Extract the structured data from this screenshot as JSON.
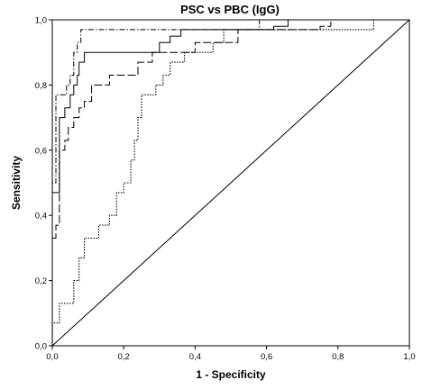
{
  "chart_data": {
    "type": "line",
    "title": "PSC vs PBC (IgG)",
    "xlabel": "1 - Specificity",
    "ylabel": "Sensitivity",
    "xlim": [
      0,
      1
    ],
    "ylim": [
      0,
      1
    ],
    "x_ticks": [
      "0,0",
      "0,2",
      "0,4",
      "0,6",
      "0,8",
      "1,0"
    ],
    "y_ticks": [
      "0,0",
      "0,2",
      "0,4",
      "0,6",
      "0,8",
      "1,0"
    ],
    "grid": false,
    "legend": "none",
    "series": [
      {
        "line_style": "solid",
        "points": [
          [
            0,
            0
          ],
          [
            0,
            0.47
          ],
          [
            0.02,
            0.47
          ],
          [
            0.02,
            0.7
          ],
          [
            0.035,
            0.7
          ],
          [
            0.035,
            0.73
          ],
          [
            0.05,
            0.73
          ],
          [
            0.05,
            0.77
          ],
          [
            0.06,
            0.77
          ],
          [
            0.06,
            0.8
          ],
          [
            0.07,
            0.8
          ],
          [
            0.07,
            0.83
          ],
          [
            0.075,
            0.83
          ],
          [
            0.075,
            0.87
          ],
          [
            0.09,
            0.87
          ],
          [
            0.09,
            0.9
          ],
          [
            0.3,
            0.9
          ],
          [
            0.3,
            0.93
          ],
          [
            0.33,
            0.93
          ],
          [
            0.33,
            0.95
          ],
          [
            0.36,
            0.95
          ],
          [
            0.36,
            0.97
          ],
          [
            0.62,
            0.97
          ],
          [
            0.62,
            0.98
          ],
          [
            0.66,
            0.98
          ],
          [
            0.66,
            1
          ],
          [
            1,
            1
          ]
        ]
      },
      {
        "line_style": "long-dash",
        "points": [
          [
            0,
            0
          ],
          [
            0,
            0.33
          ],
          [
            0.01,
            0.33
          ],
          [
            0.01,
            0.37
          ],
          [
            0.02,
            0.37
          ],
          [
            0.02,
            0.6
          ],
          [
            0.035,
            0.6
          ],
          [
            0.035,
            0.63
          ],
          [
            0.045,
            0.63
          ],
          [
            0.045,
            0.67
          ],
          [
            0.06,
            0.67
          ],
          [
            0.06,
            0.7
          ],
          [
            0.075,
            0.7
          ],
          [
            0.075,
            0.73
          ],
          [
            0.09,
            0.73
          ],
          [
            0.09,
            0.75
          ],
          [
            0.11,
            0.75
          ],
          [
            0.11,
            0.8
          ],
          [
            0.16,
            0.8
          ],
          [
            0.16,
            0.83
          ],
          [
            0.24,
            0.83
          ],
          [
            0.24,
            0.87
          ],
          [
            0.28,
            0.87
          ],
          [
            0.28,
            0.9
          ],
          [
            0.4,
            0.9
          ],
          [
            0.4,
            0.93
          ],
          [
            0.52,
            0.93
          ],
          [
            0.52,
            0.97
          ],
          [
            0.75,
            0.97
          ],
          [
            0.75,
            0.98
          ],
          [
            0.78,
            0.98
          ],
          [
            0.78,
            1
          ],
          [
            1,
            1
          ]
        ]
      },
      {
        "line_style": "dash-dot",
        "points": [
          [
            0,
            0
          ],
          [
            0,
            0.5
          ],
          [
            0.01,
            0.5
          ],
          [
            0.01,
            0.77
          ],
          [
            0.04,
            0.77
          ],
          [
            0.04,
            0.8
          ],
          [
            0.05,
            0.8
          ],
          [
            0.05,
            0.83
          ],
          [
            0.06,
            0.83
          ],
          [
            0.06,
            0.9
          ],
          [
            0.07,
            0.9
          ],
          [
            0.07,
            0.93
          ],
          [
            0.08,
            0.93
          ],
          [
            0.08,
            0.97
          ],
          [
            0.58,
            0.97
          ],
          [
            0.58,
            1
          ],
          [
            1,
            1
          ]
        ]
      },
      {
        "line_style": "dotted",
        "points": [
          [
            0,
            0
          ],
          [
            0,
            0.07
          ],
          [
            0.02,
            0.07
          ],
          [
            0.02,
            0.13
          ],
          [
            0.06,
            0.13
          ],
          [
            0.06,
            0.2
          ],
          [
            0.075,
            0.2
          ],
          [
            0.075,
            0.27
          ],
          [
            0.09,
            0.27
          ],
          [
            0.09,
            0.33
          ],
          [
            0.13,
            0.33
          ],
          [
            0.13,
            0.37
          ],
          [
            0.16,
            0.37
          ],
          [
            0.16,
            0.4
          ],
          [
            0.18,
            0.4
          ],
          [
            0.18,
            0.47
          ],
          [
            0.2,
            0.47
          ],
          [
            0.2,
            0.5
          ],
          [
            0.22,
            0.5
          ],
          [
            0.22,
            0.57
          ],
          [
            0.23,
            0.57
          ],
          [
            0.23,
            0.63
          ],
          [
            0.24,
            0.63
          ],
          [
            0.24,
            0.7
          ],
          [
            0.25,
            0.7
          ],
          [
            0.25,
            0.77
          ],
          [
            0.29,
            0.77
          ],
          [
            0.29,
            0.8
          ],
          [
            0.31,
            0.8
          ],
          [
            0.31,
            0.83
          ],
          [
            0.33,
            0.83
          ],
          [
            0.33,
            0.87
          ],
          [
            0.37,
            0.87
          ],
          [
            0.37,
            0.9
          ],
          [
            0.45,
            0.9
          ],
          [
            0.45,
            0.93
          ],
          [
            0.48,
            0.93
          ],
          [
            0.48,
            0.97
          ],
          [
            0.9,
            0.97
          ],
          [
            0.9,
            1
          ],
          [
            1,
            1
          ]
        ]
      },
      {
        "line_style": "reference",
        "points": [
          [
            0,
            0
          ],
          [
            1,
            1
          ]
        ]
      }
    ]
  }
}
